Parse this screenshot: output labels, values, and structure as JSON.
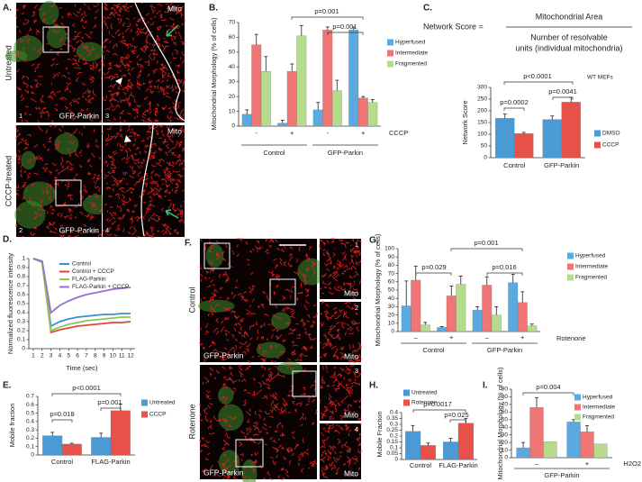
{
  "micrographs": [
    {
      "panel_label": "A.",
      "row_labels": [
        "Untreated",
        "CCCP-treated"
      ],
      "tiles": [
        {
          "number": "1",
          "caption": "GFP-Parkin"
        },
        {
          "number": "3",
          "caption": "Mito"
        },
        {
          "number": "2",
          "caption": "GFP-Parkin"
        },
        {
          "number": "4",
          "caption": "Mito"
        }
      ]
    },
    {
      "panel_label": "F.",
      "row_labels": [
        "Control",
        "Rotenone"
      ],
      "tiles": [
        {
          "caption": "GFP-Parkin"
        },
        {
          "number": "1",
          "caption": "Mito"
        },
        {
          "number": "2",
          "caption": "Mito"
        },
        {
          "caption": "GFP-Parkin"
        },
        {
          "number": "3",
          "caption": "Mito"
        },
        {
          "number": "4",
          "caption": "Mito"
        }
      ]
    }
  ],
  "chart_data": [
    {
      "type": "bar",
      "panel_label": "B.",
      "y_label": "Mitochondrial Morphology (% of cells)",
      "categories": [
        "-",
        "+",
        "-",
        "+"
      ],
      "groups": [
        "Control",
        "GFP-Parkin"
      ],
      "treatment": "CCCP",
      "series": [
        {
          "name": "Hyperfused",
          "color": "#5aaae0",
          "values": [
            8,
            2,
            11,
            65
          ],
          "errors": [
            3,
            2,
            5,
            2
          ]
        },
        {
          "name": "Intermediate",
          "color": "#f07575",
          "values": [
            55,
            37,
            65,
            19
          ],
          "errors": [
            7,
            5,
            2,
            1
          ]
        },
        {
          "name": "Fragmented",
          "color": "#b5dc8c",
          "values": [
            37,
            61,
            24,
            16
          ],
          "errors": [
            10,
            7,
            7,
            2
          ]
        }
      ],
      "ylim": [
        0,
        70
      ],
      "yticks": [
        0,
        10,
        20,
        30,
        40,
        50,
        60,
        70
      ],
      "annotations": [
        "p=0.001",
        "p=0.001"
      ]
    },
    {
      "type": "bar",
      "panel_label": "C.",
      "y_label": "Network Score",
      "formula": {
        "lhs": "Network Score =",
        "numerator": "Mitochondrial Area",
        "denominator": [
          "Number of resolvable",
          "units (individual mitochondria)"
        ]
      },
      "note": "WT MEFs",
      "categories": [
        "Control",
        "GFP-Parkin"
      ],
      "series": [
        {
          "name": "DMSO",
          "color": "#4a9ad6",
          "values": [
            168,
            163
          ],
          "errors": [
            18,
            15
          ]
        },
        {
          "name": "CCCP",
          "color": "#e8504a",
          "values": [
            103,
            237
          ],
          "errors": [
            5,
            20
          ]
        }
      ],
      "ylim": [
        0,
        300
      ],
      "yticks": [
        0,
        50,
        100,
        150,
        200,
        250,
        300
      ],
      "annotations": [
        "p<0.0001",
        "p=0.0002",
        "p=0.0041"
      ]
    },
    {
      "type": "line",
      "panel_label": "D.",
      "y_label": "Normalized fluorescence intensity",
      "x_label": "Time (sec)",
      "x": [
        1,
        2,
        3,
        4,
        5,
        6,
        7,
        8,
        9,
        10,
        11,
        12
      ],
      "series": [
        {
          "name": "Control",
          "color": "#3a90d0",
          "values": [
            1,
            0.97,
            0.25,
            0.3,
            0.33,
            0.35,
            0.36,
            0.37,
            0.38,
            0.38,
            0.39,
            0.39
          ]
        },
        {
          "name": "Control + CCCP",
          "color": "#e0453c",
          "values": [
            1,
            0.96,
            0.18,
            0.21,
            0.23,
            0.25,
            0.26,
            0.27,
            0.28,
            0.29,
            0.29,
            0.3
          ]
        },
        {
          "name": "FLAG-Parkin",
          "color": "#8cc850",
          "values": [
            1,
            0.96,
            0.2,
            0.24,
            0.27,
            0.29,
            0.31,
            0.32,
            0.33,
            0.34,
            0.35,
            0.35
          ]
        },
        {
          "name": "FLAG-Parkin + CCCP",
          "color": "#9a70c8",
          "values": [
            1,
            0.97,
            0.4,
            0.48,
            0.53,
            0.57,
            0.6,
            0.62,
            0.64,
            0.66,
            0.67,
            0.68
          ]
        }
      ],
      "xlim": [
        0.5,
        12.5
      ],
      "xticks": [
        1,
        2,
        3,
        4,
        5,
        6,
        7,
        8,
        9,
        10,
        11,
        12
      ],
      "ylim": [
        0,
        1
      ],
      "yticks": [
        0,
        0.1,
        0.2,
        0.3,
        0.4,
        0.5,
        0.6,
        0.7,
        0.8,
        0.9,
        1
      ]
    },
    {
      "type": "bar",
      "panel_label": "E.",
      "y_label": "Mobile fraction",
      "categories": [
        "Control",
        "FLAG-Parkin"
      ],
      "series": [
        {
          "name": "Untreated",
          "color": "#4a9ad6",
          "values": [
            0.23,
            0.21
          ],
          "errors": [
            0.04,
            0.05
          ]
        },
        {
          "name": "CCCP",
          "color": "#e8504a",
          "values": [
            0.13,
            0.53
          ],
          "errors": [
            0.01,
            0.08
          ]
        }
      ],
      "ylim": [
        0,
        0.7
      ],
      "yticks": [
        0,
        0.1,
        0.2,
        0.3,
        0.4,
        0.5,
        0.6,
        0.7
      ],
      "annotations": [
        "p=0.018",
        "p<0.0001",
        "p=0.001"
      ]
    },
    {
      "type": "bar",
      "panel_label": "G.",
      "y_label": "Mitochondrial Morphology (% of cells)",
      "categories": [
        "–",
        "+",
        "–",
        "+"
      ],
      "groups": [
        "Control",
        "GFP-Parkin"
      ],
      "treatment": "Rotenone",
      "series": [
        {
          "name": "Hyperfused",
          "color": "#5aaae0",
          "values": [
            31,
            5,
            26,
            59
          ],
          "errors": [
            30,
            1,
            4,
            10
          ]
        },
        {
          "name": "Intermediate",
          "color": "#f07575",
          "values": [
            62,
            43,
            56,
            35
          ],
          "errors": [
            17,
            12,
            10,
            13
          ]
        },
        {
          "name": "Fragmented",
          "color": "#b5dc8c",
          "values": [
            8,
            57,
            20,
            7
          ],
          "errors": [
            3,
            10,
            10,
            2
          ]
        }
      ],
      "ylim": [
        0,
        100
      ],
      "yticks": [
        0,
        10,
        20,
        30,
        40,
        50,
        60,
        70,
        80,
        90,
        100
      ],
      "annotations": [
        "p=0.001",
        "p=0.029",
        "p=0.016"
      ]
    },
    {
      "type": "bar",
      "panel_label": "H.",
      "y_label": "Mobile Fraction",
      "categories": [
        "Control",
        "FLAG-Parkin"
      ],
      "series": [
        {
          "name": "Untreated",
          "color": "#4a9ad6",
          "values": [
            0.24,
            0.15
          ],
          "errors": [
            0.05,
            0.03
          ]
        },
        {
          "name": "Rotenone",
          "color": "#e8504a",
          "values": [
            0.12,
            0.31
          ],
          "errors": [
            0.02,
            0.04
          ]
        }
      ],
      "ylim": [
        0,
        0.4
      ],
      "yticks": [
        0,
        0.05,
        0.1,
        0.15,
        0.2,
        0.25,
        0.3,
        0.35,
        0.4
      ],
      "annotations": [
        "p=0.0017",
        "p=0.025"
      ]
    },
    {
      "type": "bar",
      "panel_label": "I.",
      "y_label": "Mitochondrial Morphology (% of cells)",
      "categories": [
        "–",
        "+"
      ],
      "groups": [
        "GFP-Parkin"
      ],
      "treatment": "H2O2",
      "series": [
        {
          "name": "Hyperfused",
          "color": "#5aaae0",
          "values": [
            13,
            47
          ],
          "errors": [
            7,
            3
          ]
        },
        {
          "name": "Intermediate",
          "color": "#f07575",
          "values": [
            66,
            34
          ],
          "errors": [
            13,
            8
          ]
        },
        {
          "name": "Fragmented",
          "color": "#b5dc8c",
          "values": [
            21,
            18
          ]
        }
      ],
      "ylim": [
        0,
        90
      ],
      "yticks": [
        0,
        10,
        20,
        30,
        40,
        50,
        60,
        70,
        80,
        90
      ],
      "annotations": [
        "p=0.004"
      ]
    }
  ]
}
